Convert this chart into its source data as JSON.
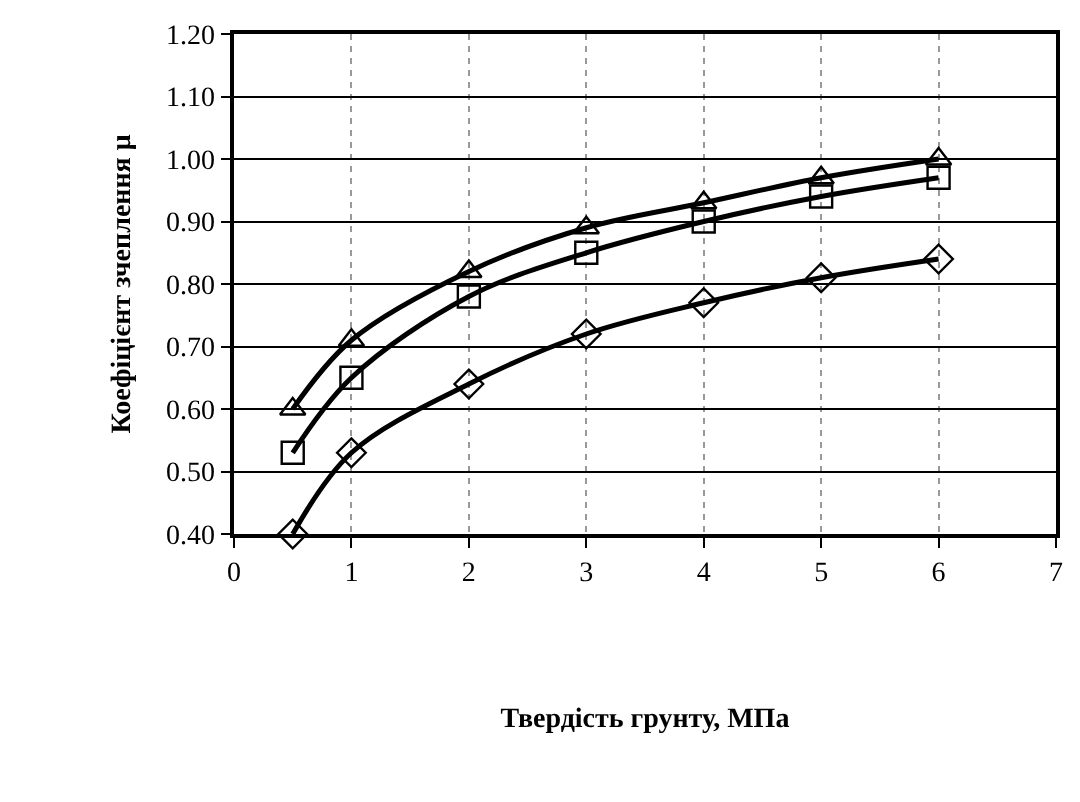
{
  "chart_data": {
    "type": "line",
    "xlabel": "Твердість грунту, МПа",
    "ylabel": "Коефіцієнт зчеплення μ",
    "x": [
      0.5,
      1,
      2,
      3,
      4,
      5,
      6
    ],
    "xlim": [
      0,
      7
    ],
    "xticks": [
      0,
      1,
      2,
      3,
      4,
      5,
      6,
      7
    ],
    "ylim": [
      0.4,
      1.2
    ],
    "yticks": [
      {
        "value": 0.4,
        "label": "0.40"
      },
      {
        "value": 0.5,
        "label": "0.50"
      },
      {
        "value": 0.6,
        "label": "0.60"
      },
      {
        "value": 0.7,
        "label": "0.70"
      },
      {
        "value": 0.8,
        "label": "0.80"
      },
      {
        "value": 0.9,
        "label": "0.90"
      },
      {
        "value": 1.0,
        "label": "1.00"
      },
      {
        "value": 1.1,
        "label": "1.10"
      },
      {
        "value": 1.2,
        "label": "1.20"
      }
    ],
    "grid": true,
    "line_style": "solid",
    "series": [
      {
        "color": "#000000",
        "marker": "triangle",
        "values": [
          0.6,
          0.71,
          0.82,
          0.89,
          0.93,
          0.97,
          1.0
        ]
      },
      {
        "color": "#000000",
        "marker": "square",
        "values": [
          0.53,
          0.65,
          0.78,
          0.85,
          0.9,
          0.94,
          0.97
        ]
      },
      {
        "color": "#000000",
        "marker": "diamond",
        "values": [
          0.4,
          0.53,
          0.64,
          0.72,
          0.77,
          0.81,
          0.84
        ]
      }
    ]
  }
}
